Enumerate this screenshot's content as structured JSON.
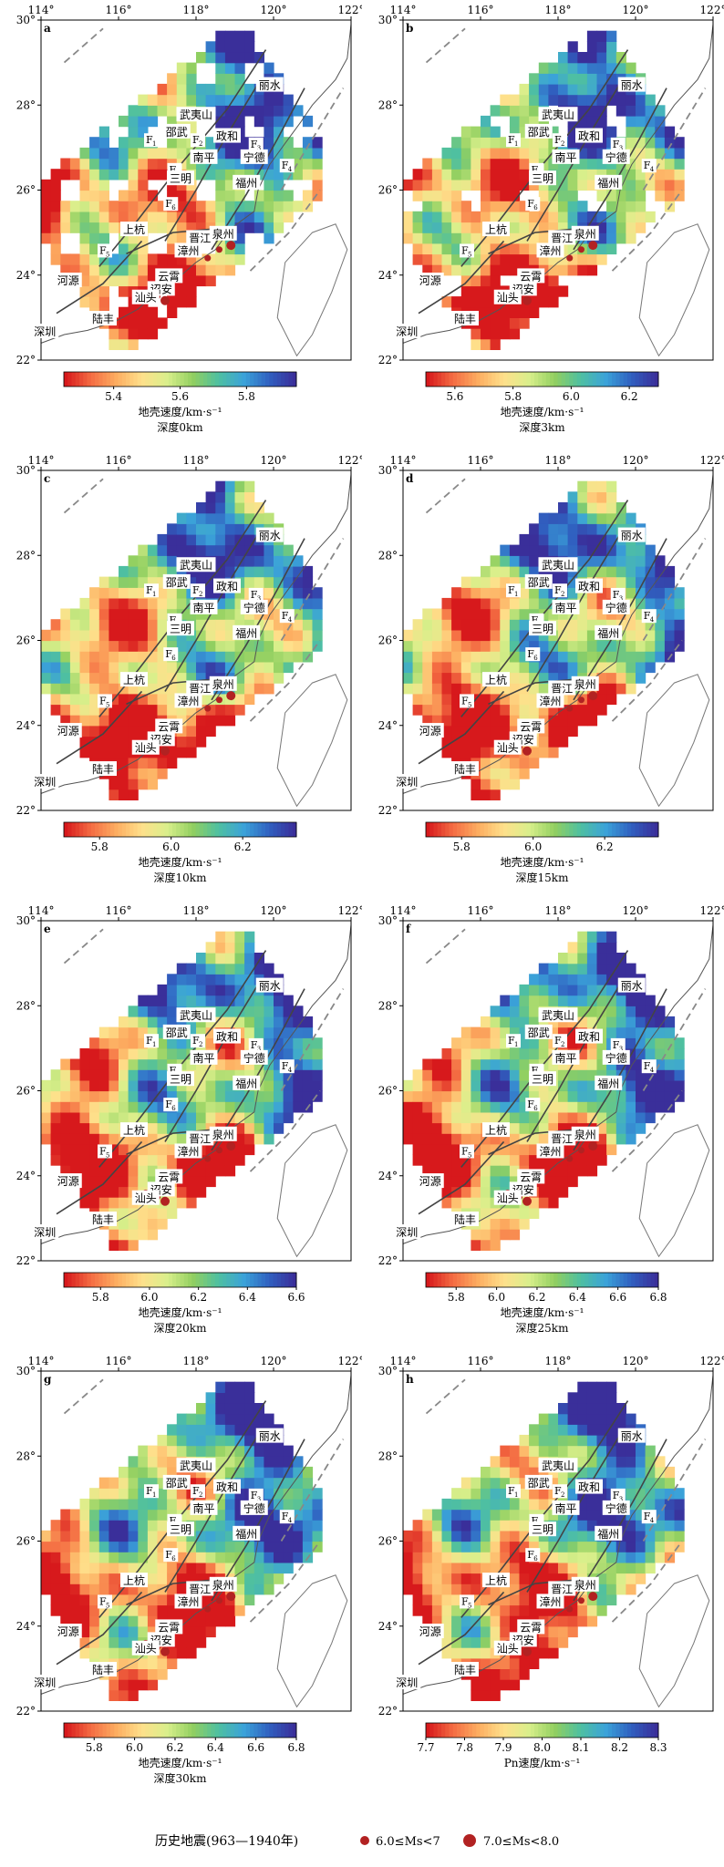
{
  "axes": {
    "lon_ticks": [
      "114°",
      "116°",
      "118°",
      "120°",
      "122°"
    ],
    "lat_ticks": [
      "30°",
      "28°",
      "26°",
      "24°",
      "22°"
    ],
    "lon_values": [
      114,
      116,
      118,
      120,
      122
    ],
    "lat_values": [
      30,
      28,
      26,
      24,
      22
    ]
  },
  "colormap": [
    "#d7191c",
    "#f46d43",
    "#fdae61",
    "#fee08b",
    "#d9ef8b",
    "#91cf60",
    "#4fc0a0",
    "#3ba3d9",
    "#3060c0",
    "#3a2f9a"
  ],
  "places": [
    {
      "name": "丽水",
      "lon": 119.9,
      "lat": 28.4
    },
    {
      "name": "武夷山",
      "lon": 118.0,
      "lat": 27.7
    },
    {
      "name": "邵武",
      "lon": 117.5,
      "lat": 27.3
    },
    {
      "name": "政和",
      "lon": 118.8,
      "lat": 27.2
    },
    {
      "name": "南平",
      "lon": 118.2,
      "lat": 26.7
    },
    {
      "name": "宁德",
      "lon": 119.5,
      "lat": 26.7
    },
    {
      "name": "三明",
      "lon": 117.6,
      "lat": 26.2
    },
    {
      "name": "福州",
      "lon": 119.3,
      "lat": 26.1
    },
    {
      "name": "上杭",
      "lon": 116.4,
      "lat": 25.0
    },
    {
      "name": "晋江",
      "lon": 118.1,
      "lat": 24.8
    },
    {
      "name": "泉州",
      "lon": 118.7,
      "lat": 24.9
    },
    {
      "name": "漳州",
      "lon": 117.8,
      "lat": 24.5
    },
    {
      "name": "云霄",
      "lon": 117.3,
      "lat": 23.9
    },
    {
      "name": "诏安",
      "lon": 117.1,
      "lat": 23.6
    },
    {
      "name": "汕头",
      "lon": 116.7,
      "lat": 23.4
    },
    {
      "name": "河源",
      "lon": 114.7,
      "lat": 23.8
    },
    {
      "name": "陆丰",
      "lon": 115.6,
      "lat": 22.9
    },
    {
      "name": "深圳",
      "lon": 114.1,
      "lat": 22.6
    }
  ],
  "faults": [
    {
      "name": "F",
      "sub": "1",
      "lon": 116.8,
      "lat": 27.1
    },
    {
      "name": "F",
      "sub": "2",
      "lon": 118.0,
      "lat": 27.1
    },
    {
      "name": "F",
      "sub": "3",
      "lon": 119.5,
      "lat": 27.0
    },
    {
      "name": "F",
      "sub": "4",
      "lon": 120.3,
      "lat": 26.5
    },
    {
      "name": "F",
      "sub": "5",
      "lon": 115.6,
      "lat": 24.5
    },
    {
      "name": "F",
      "sub": "6",
      "lon": 117.3,
      "lat": 25.6
    },
    {
      "name": "F",
      "sub": "7",
      "lon": 117.4,
      "lat": 26.4
    }
  ],
  "quakes_m6": [
    {
      "lon": 118.6,
      "lat": 24.6
    },
    {
      "lon": 117.3,
      "lat": 24.0
    },
    {
      "lon": 117.0,
      "lat": 23.5
    },
    {
      "lon": 118.3,
      "lat": 24.4
    },
    {
      "lon": 116.7,
      "lat": 23.6
    }
  ],
  "quakes_m7": [
    {
      "lon": 118.9,
      "lat": 24.7
    },
    {
      "lon": 117.2,
      "lat": 23.4
    }
  ],
  "panels": [
    {
      "letter": "a",
      "ticks": [
        "5.4",
        "5.6",
        "5.8"
      ],
      "tick_values": [
        5.4,
        5.6,
        5.8
      ],
      "range": [
        5.25,
        5.95
      ],
      "unit": "地壳速度/km·s⁻¹",
      "depth": "深度0km",
      "coverage": "sparse"
    },
    {
      "letter": "b",
      "ticks": [
        "5.6",
        "5.8",
        "6.0",
        "6.2"
      ],
      "tick_values": [
        5.6,
        5.8,
        6.0,
        6.2
      ],
      "range": [
        5.5,
        6.3
      ],
      "unit": "地壳速度/km·s⁻¹",
      "depth": "深度3km",
      "coverage": "medium"
    },
    {
      "letter": "c",
      "ticks": [
        "5.8",
        "6.0",
        "6.2"
      ],
      "tick_values": [
        5.8,
        6.0,
        6.2
      ],
      "range": [
        5.7,
        6.35
      ],
      "unit": "地壳速度/km·s⁻¹",
      "depth": "深度10km",
      "coverage": "full"
    },
    {
      "letter": "d",
      "ticks": [
        "5.8",
        "6.0",
        "6.2"
      ],
      "tick_values": [
        5.8,
        6.0,
        6.2
      ],
      "range": [
        5.7,
        6.35
      ],
      "unit": "地壳速度/km·s⁻¹",
      "depth": "深度15km",
      "coverage": "full"
    },
    {
      "letter": "e",
      "ticks": [
        "5.8",
        "6.0",
        "6.2",
        "6.4",
        "6.6"
      ],
      "tick_values": [
        5.8,
        6.0,
        6.2,
        6.4,
        6.6
      ],
      "range": [
        5.65,
        6.6
      ],
      "unit": "地壳速度/km·s⁻¹",
      "depth": "深度20km",
      "coverage": "full"
    },
    {
      "letter": "f",
      "ticks": [
        "5.8",
        "6.0",
        "6.2",
        "6.4",
        "6.6",
        "6.8"
      ],
      "tick_values": [
        5.8,
        6.0,
        6.2,
        6.4,
        6.6,
        6.8
      ],
      "range": [
        5.65,
        6.8
      ],
      "unit": "地壳速度/km·s⁻¹",
      "depth": "深度25km",
      "coverage": "full"
    },
    {
      "letter": "g",
      "ticks": [
        "5.8",
        "6.0",
        "6.2",
        "6.4",
        "6.6",
        "6.8"
      ],
      "tick_values": [
        5.8,
        6.0,
        6.2,
        6.4,
        6.6,
        6.8
      ],
      "range": [
        5.65,
        6.8
      ],
      "unit": "地壳速度/km·s⁻¹",
      "depth": "深度30km",
      "coverage": "full"
    },
    {
      "letter": "h",
      "ticks": [
        "7.7",
        "7.8",
        "7.9",
        "8.0",
        "8.1",
        "8.2",
        "8.3"
      ],
      "tick_values": [
        7.7,
        7.8,
        7.9,
        8.0,
        8.1,
        8.2,
        8.3
      ],
      "range": [
        7.7,
        8.3
      ],
      "unit": "Pn速度/km·s⁻¹",
      "depth": "",
      "coverage": "full"
    }
  ],
  "legend": {
    "title": "历史地震(963—1940年)",
    "m6": "6.0≤Ms<7",
    "m7": "7.0≤Ms<8.0"
  }
}
